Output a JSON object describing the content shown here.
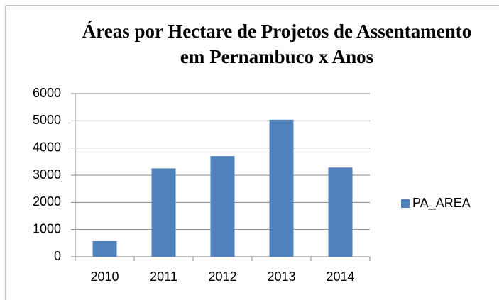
{
  "chart_data": {
    "type": "bar",
    "title": "Áreas por Hectare de Projetos de Assentamento em Pernambuco x Anos",
    "categories": [
      "2010",
      "2011",
      "2012",
      "2013",
      "2014"
    ],
    "series": [
      {
        "name": "PA_AREA",
        "color": "#4f81bd",
        "values": [
          575,
          3250,
          3700,
          5040,
          3280
        ]
      }
    ],
    "ylim": [
      0,
      6000
    ],
    "yticks": [
      0,
      1000,
      2000,
      3000,
      4000,
      5000,
      6000
    ],
    "grid": true,
    "legend": "right"
  }
}
